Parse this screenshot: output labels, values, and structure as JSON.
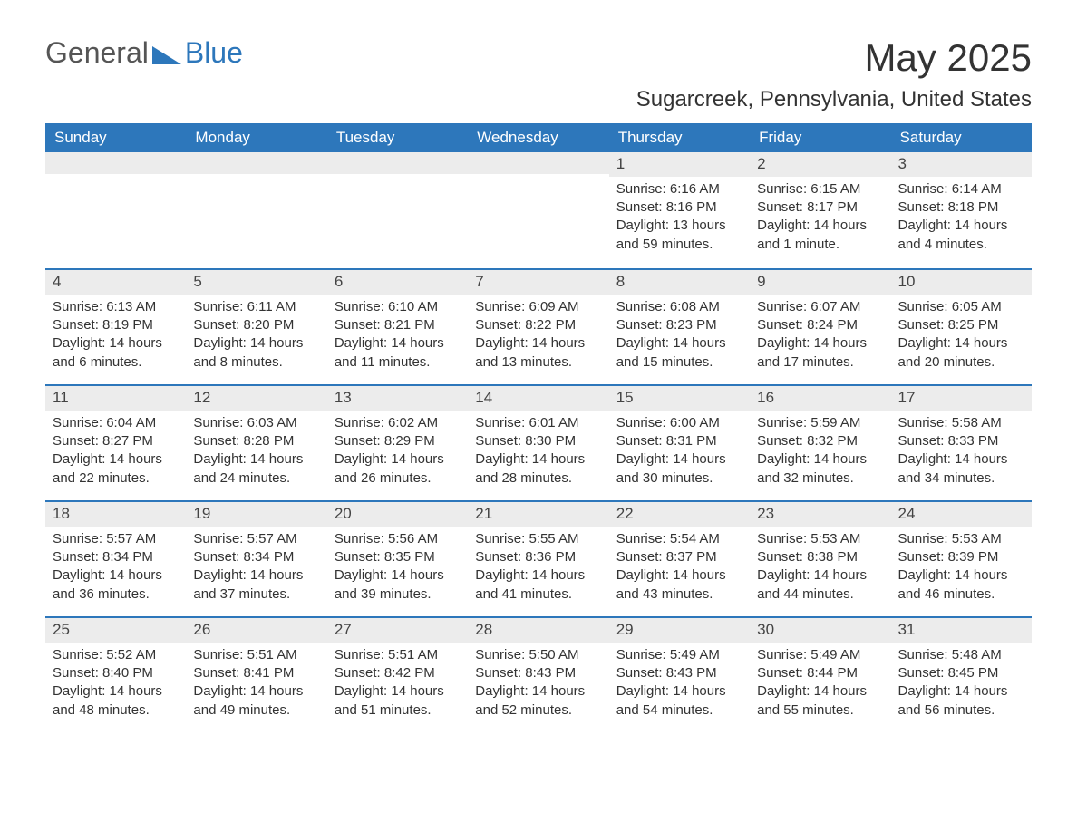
{
  "brand": {
    "text1": "General",
    "text2": "Blue"
  },
  "title": "May 2025",
  "location": "Sugarcreek, Pennsylvania, United States",
  "colors": {
    "header_bg": "#2d77bb",
    "header_text": "#ffffff",
    "row_border": "#2d77bb",
    "daybar_bg": "#ececec",
    "text": "#333333",
    "background": "#ffffff"
  },
  "weekdays": [
    "Sunday",
    "Monday",
    "Tuesday",
    "Wednesday",
    "Thursday",
    "Friday",
    "Saturday"
  ],
  "weeks": [
    [
      {
        "day": "",
        "sunrise": "",
        "sunset": "",
        "daylight": ""
      },
      {
        "day": "",
        "sunrise": "",
        "sunset": "",
        "daylight": ""
      },
      {
        "day": "",
        "sunrise": "",
        "sunset": "",
        "daylight": ""
      },
      {
        "day": "",
        "sunrise": "",
        "sunset": "",
        "daylight": ""
      },
      {
        "day": "1",
        "sunrise": "Sunrise: 6:16 AM",
        "sunset": "Sunset: 8:16 PM",
        "daylight": "Daylight: 13 hours and 59 minutes."
      },
      {
        "day": "2",
        "sunrise": "Sunrise: 6:15 AM",
        "sunset": "Sunset: 8:17 PM",
        "daylight": "Daylight: 14 hours and 1 minute."
      },
      {
        "day": "3",
        "sunrise": "Sunrise: 6:14 AM",
        "sunset": "Sunset: 8:18 PM",
        "daylight": "Daylight: 14 hours and 4 minutes."
      }
    ],
    [
      {
        "day": "4",
        "sunrise": "Sunrise: 6:13 AM",
        "sunset": "Sunset: 8:19 PM",
        "daylight": "Daylight: 14 hours and 6 minutes."
      },
      {
        "day": "5",
        "sunrise": "Sunrise: 6:11 AM",
        "sunset": "Sunset: 8:20 PM",
        "daylight": "Daylight: 14 hours and 8 minutes."
      },
      {
        "day": "6",
        "sunrise": "Sunrise: 6:10 AM",
        "sunset": "Sunset: 8:21 PM",
        "daylight": "Daylight: 14 hours and 11 minutes."
      },
      {
        "day": "7",
        "sunrise": "Sunrise: 6:09 AM",
        "sunset": "Sunset: 8:22 PM",
        "daylight": "Daylight: 14 hours and 13 minutes."
      },
      {
        "day": "8",
        "sunrise": "Sunrise: 6:08 AM",
        "sunset": "Sunset: 8:23 PM",
        "daylight": "Daylight: 14 hours and 15 minutes."
      },
      {
        "day": "9",
        "sunrise": "Sunrise: 6:07 AM",
        "sunset": "Sunset: 8:24 PM",
        "daylight": "Daylight: 14 hours and 17 minutes."
      },
      {
        "day": "10",
        "sunrise": "Sunrise: 6:05 AM",
        "sunset": "Sunset: 8:25 PM",
        "daylight": "Daylight: 14 hours and 20 minutes."
      }
    ],
    [
      {
        "day": "11",
        "sunrise": "Sunrise: 6:04 AM",
        "sunset": "Sunset: 8:27 PM",
        "daylight": "Daylight: 14 hours and 22 minutes."
      },
      {
        "day": "12",
        "sunrise": "Sunrise: 6:03 AM",
        "sunset": "Sunset: 8:28 PM",
        "daylight": "Daylight: 14 hours and 24 minutes."
      },
      {
        "day": "13",
        "sunrise": "Sunrise: 6:02 AM",
        "sunset": "Sunset: 8:29 PM",
        "daylight": "Daylight: 14 hours and 26 minutes."
      },
      {
        "day": "14",
        "sunrise": "Sunrise: 6:01 AM",
        "sunset": "Sunset: 8:30 PM",
        "daylight": "Daylight: 14 hours and 28 minutes."
      },
      {
        "day": "15",
        "sunrise": "Sunrise: 6:00 AM",
        "sunset": "Sunset: 8:31 PM",
        "daylight": "Daylight: 14 hours and 30 minutes."
      },
      {
        "day": "16",
        "sunrise": "Sunrise: 5:59 AM",
        "sunset": "Sunset: 8:32 PM",
        "daylight": "Daylight: 14 hours and 32 minutes."
      },
      {
        "day": "17",
        "sunrise": "Sunrise: 5:58 AM",
        "sunset": "Sunset: 8:33 PM",
        "daylight": "Daylight: 14 hours and 34 minutes."
      }
    ],
    [
      {
        "day": "18",
        "sunrise": "Sunrise: 5:57 AM",
        "sunset": "Sunset: 8:34 PM",
        "daylight": "Daylight: 14 hours and 36 minutes."
      },
      {
        "day": "19",
        "sunrise": "Sunrise: 5:57 AM",
        "sunset": "Sunset: 8:34 PM",
        "daylight": "Daylight: 14 hours and 37 minutes."
      },
      {
        "day": "20",
        "sunrise": "Sunrise: 5:56 AM",
        "sunset": "Sunset: 8:35 PM",
        "daylight": "Daylight: 14 hours and 39 minutes."
      },
      {
        "day": "21",
        "sunrise": "Sunrise: 5:55 AM",
        "sunset": "Sunset: 8:36 PM",
        "daylight": "Daylight: 14 hours and 41 minutes."
      },
      {
        "day": "22",
        "sunrise": "Sunrise: 5:54 AM",
        "sunset": "Sunset: 8:37 PM",
        "daylight": "Daylight: 14 hours and 43 minutes."
      },
      {
        "day": "23",
        "sunrise": "Sunrise: 5:53 AM",
        "sunset": "Sunset: 8:38 PM",
        "daylight": "Daylight: 14 hours and 44 minutes."
      },
      {
        "day": "24",
        "sunrise": "Sunrise: 5:53 AM",
        "sunset": "Sunset: 8:39 PM",
        "daylight": "Daylight: 14 hours and 46 minutes."
      }
    ],
    [
      {
        "day": "25",
        "sunrise": "Sunrise: 5:52 AM",
        "sunset": "Sunset: 8:40 PM",
        "daylight": "Daylight: 14 hours and 48 minutes."
      },
      {
        "day": "26",
        "sunrise": "Sunrise: 5:51 AM",
        "sunset": "Sunset: 8:41 PM",
        "daylight": "Daylight: 14 hours and 49 minutes."
      },
      {
        "day": "27",
        "sunrise": "Sunrise: 5:51 AM",
        "sunset": "Sunset: 8:42 PM",
        "daylight": "Daylight: 14 hours and 51 minutes."
      },
      {
        "day": "28",
        "sunrise": "Sunrise: 5:50 AM",
        "sunset": "Sunset: 8:43 PM",
        "daylight": "Daylight: 14 hours and 52 minutes."
      },
      {
        "day": "29",
        "sunrise": "Sunrise: 5:49 AM",
        "sunset": "Sunset: 8:43 PM",
        "daylight": "Daylight: 14 hours and 54 minutes."
      },
      {
        "day": "30",
        "sunrise": "Sunrise: 5:49 AM",
        "sunset": "Sunset: 8:44 PM",
        "daylight": "Daylight: 14 hours and 55 minutes."
      },
      {
        "day": "31",
        "sunrise": "Sunrise: 5:48 AM",
        "sunset": "Sunset: 8:45 PM",
        "daylight": "Daylight: 14 hours and 56 minutes."
      }
    ]
  ]
}
